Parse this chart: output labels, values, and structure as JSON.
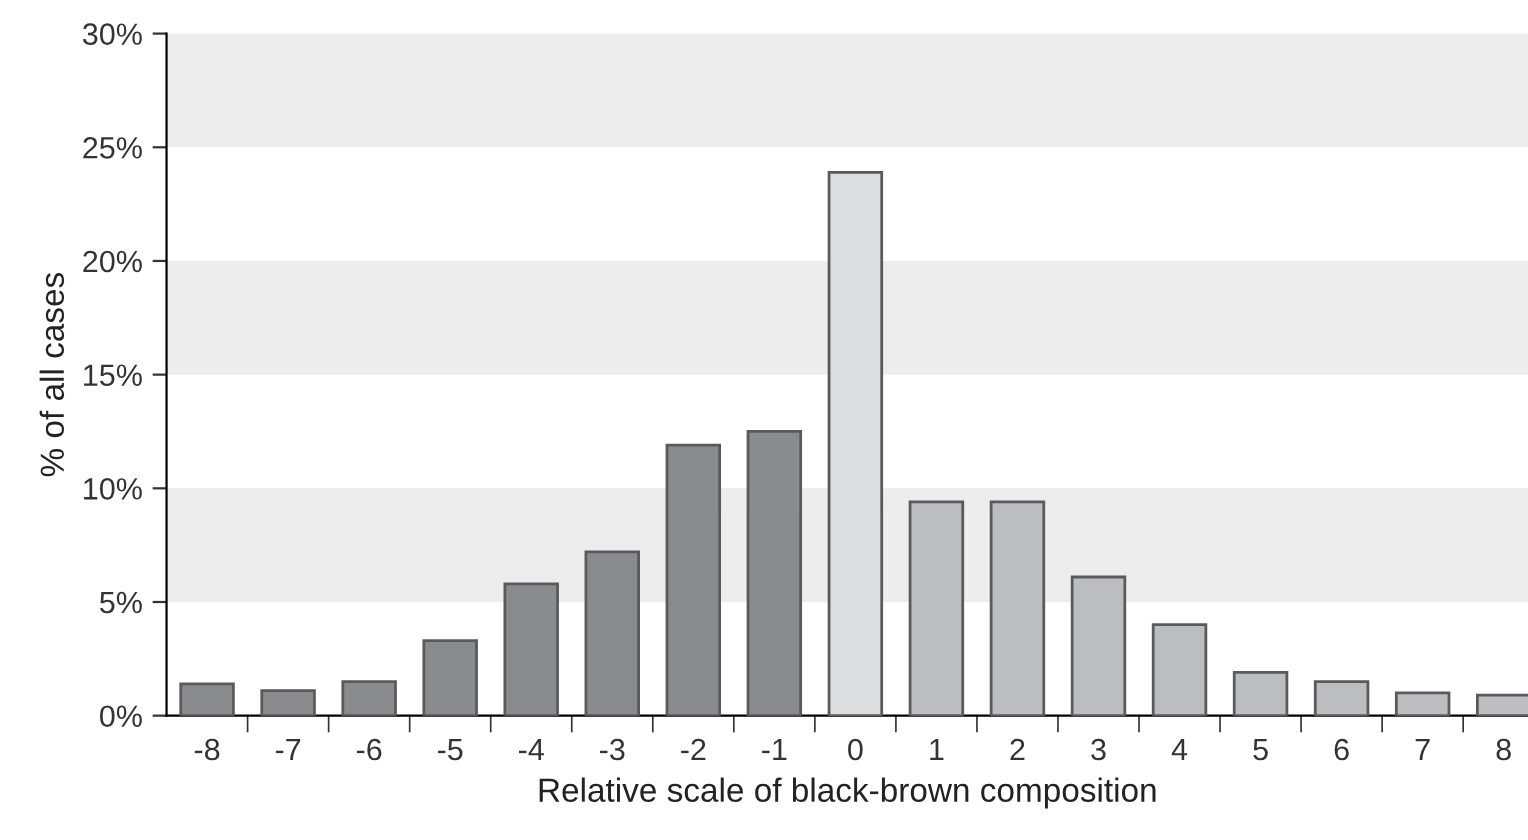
{
  "chart_data": {
    "type": "bar",
    "xlabel": "Relative scale of black-brown composition",
    "ylabel": "% of all cases",
    "categories": [
      "-8",
      "-7",
      "-6",
      "-5",
      "-4",
      "-3",
      "-2",
      "-1",
      "0",
      "1",
      "2",
      "3",
      "4",
      "5",
      "6",
      "7",
      "8"
    ],
    "values": [
      1.4,
      1.1,
      1.5,
      3.3,
      5.8,
      7.2,
      11.9,
      12.5,
      23.9,
      9.4,
      9.4,
      6.1,
      4.0,
      1.9,
      1.5,
      1.0,
      0.9
    ],
    "colors": [
      "#8a8b8f",
      "#8a8b8f",
      "#8a8b8f",
      "#8a8b8f",
      "#8a8b8f",
      "#8a8b8f",
      "#8a8b8f",
      "#8a8b8f",
      "#dcdddf",
      "#bcbdc1",
      "#bcbdc1",
      "#bcbdc1",
      "#bcbdc1",
      "#bcbdc1",
      "#bcbdc1",
      "#bcbdc1",
      "#bcbdc1"
    ],
    "ylim": [
      0,
      30
    ],
    "yticks": [
      {
        "value": 0,
        "label": "0%"
      },
      {
        "value": 5,
        "label": "5%"
      },
      {
        "value": 10,
        "label": "10%"
      },
      {
        "value": 15,
        "label": "15%"
      },
      {
        "value": 20,
        "label": "20%"
      },
      {
        "value": 25,
        "label": "25%"
      },
      {
        "value": 30,
        "label": "30%"
      }
    ],
    "bands": [
      {
        "axis": "y",
        "from": 5,
        "to": 10,
        "color": "#ededed"
      },
      {
        "axis": "y",
        "from": 15,
        "to": 20,
        "color": "#ededed"
      },
      {
        "axis": "y",
        "from": 25,
        "to": 30,
        "color": "#ededed"
      }
    ],
    "grid": false,
    "legend": false
  }
}
